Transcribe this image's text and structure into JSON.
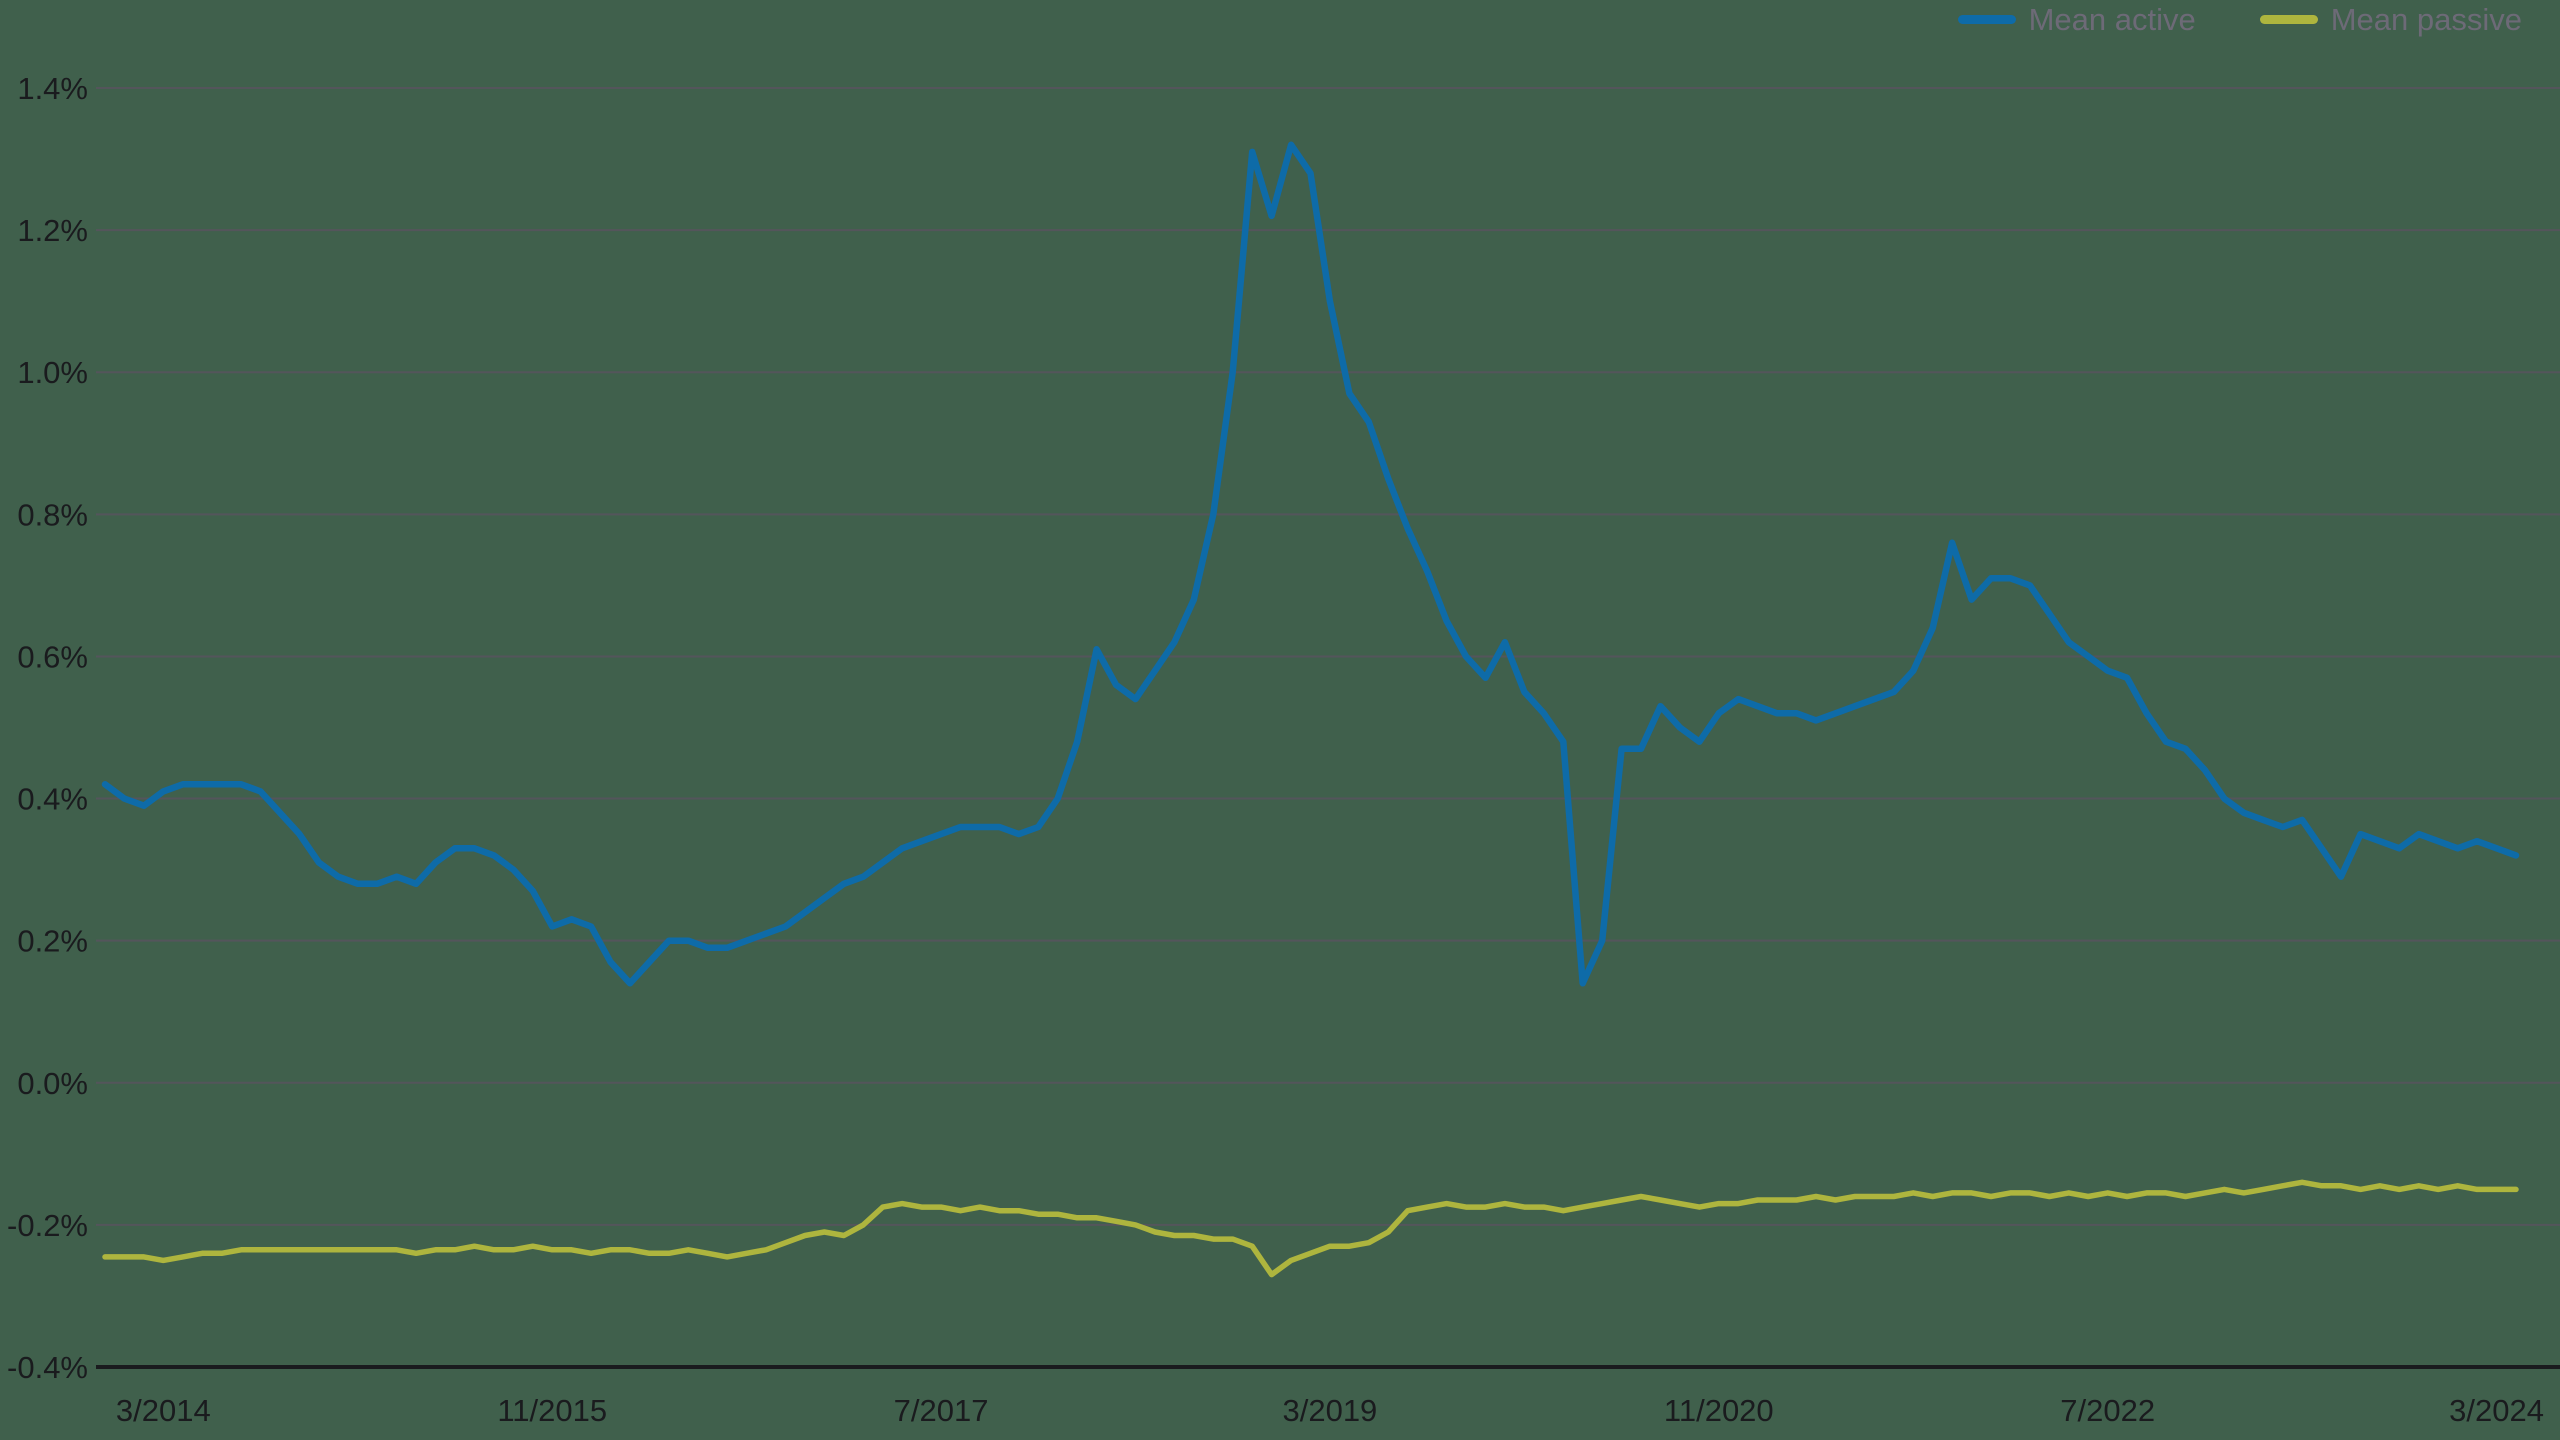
{
  "chart_data": {
    "type": "line",
    "title": "",
    "background_color": "#40604C",
    "gridline_color": "#54555B",
    "axis_line_color": "#1A1B1E",
    "tick_label_color": "#1A1B1E",
    "grid": "horizontal",
    "legend": {
      "position": "top-right",
      "text_color": "#6D6A77"
    },
    "ylim": [
      -0.4,
      1.4
    ],
    "ylabel_format": "percent",
    "y_ticks": [
      {
        "value": 1.4,
        "label": "1.4%"
      },
      {
        "value": 1.2,
        "label": "1.2%"
      },
      {
        "value": 1.0,
        "label": "1.0%"
      },
      {
        "value": 0.8,
        "label": "0.8%"
      },
      {
        "value": 0.6,
        "label": "0.6%"
      },
      {
        "value": 0.4,
        "label": "0.4%"
      },
      {
        "value": 0.2,
        "label": "0.2%"
      },
      {
        "value": 0.0,
        "label": "0.0%"
      },
      {
        "value": -0.2,
        "label": "-0.2%"
      },
      {
        "value": -0.4,
        "label": "-0.4%"
      }
    ],
    "x": {
      "unit": "month",
      "first_point": "12/2013",
      "last_point": "4/2024",
      "n_points": 125
    },
    "x_ticks": [
      {
        "label": "3/2014",
        "month_index": 3
      },
      {
        "label": "11/2015",
        "month_index": 23
      },
      {
        "label": "7/2017",
        "month_index": 43
      },
      {
        "label": "3/2019",
        "month_index": 63
      },
      {
        "label": "11/2020",
        "month_index": 83
      },
      {
        "label": "7/2022",
        "month_index": 103
      },
      {
        "label": "3/2024",
        "month_index": 123
      }
    ],
    "series": [
      {
        "name": "Mean active",
        "color": "#0E6BA8",
        "values": [
          0.42,
          0.4,
          0.39,
          0.41,
          0.42,
          0.42,
          0.42,
          0.42,
          0.41,
          0.38,
          0.35,
          0.31,
          0.29,
          0.28,
          0.28,
          0.29,
          0.28,
          0.31,
          0.33,
          0.33,
          0.32,
          0.3,
          0.27,
          0.22,
          0.23,
          0.22,
          0.17,
          0.14,
          0.17,
          0.2,
          0.2,
          0.19,
          0.19,
          0.2,
          0.21,
          0.22,
          0.24,
          0.26,
          0.28,
          0.29,
          0.31,
          0.33,
          0.34,
          0.35,
          0.36,
          0.36,
          0.36,
          0.35,
          0.36,
          0.4,
          0.48,
          0.61,
          0.56,
          0.54,
          0.58,
          0.62,
          0.68,
          0.8,
          1.0,
          1.31,
          1.22,
          1.32,
          1.28,
          1.1,
          0.97,
          0.93,
          0.85,
          0.78,
          0.72,
          0.65,
          0.6,
          0.57,
          0.62,
          0.55,
          0.52,
          0.48,
          0.14,
          0.2,
          0.47,
          0.47,
          0.53,
          0.5,
          0.48,
          0.52,
          0.54,
          0.53,
          0.52,
          0.52,
          0.51,
          0.52,
          0.53,
          0.54,
          0.55,
          0.58,
          0.64,
          0.76,
          0.68,
          0.71,
          0.71,
          0.7,
          0.66,
          0.62,
          0.6,
          0.58,
          0.57,
          0.52,
          0.48,
          0.47,
          0.44,
          0.4,
          0.38,
          0.37,
          0.36,
          0.37,
          0.33,
          0.29,
          0.35,
          0.34,
          0.33,
          0.35,
          0.34,
          0.33,
          0.34,
          0.33,
          0.32
        ]
      },
      {
        "name": "Mean passive",
        "color": "#AEB53E",
        "values": [
          -0.245,
          -0.245,
          -0.245,
          -0.25,
          -0.245,
          -0.24,
          -0.24,
          -0.235,
          -0.235,
          -0.235,
          -0.235,
          -0.235,
          -0.235,
          -0.235,
          -0.235,
          -0.235,
          -0.24,
          -0.235,
          -0.235,
          -0.23,
          -0.235,
          -0.235,
          -0.23,
          -0.235,
          -0.235,
          -0.24,
          -0.235,
          -0.235,
          -0.24,
          -0.24,
          -0.235,
          -0.24,
          -0.245,
          -0.24,
          -0.235,
          -0.225,
          -0.215,
          -0.21,
          -0.215,
          -0.2,
          -0.175,
          -0.17,
          -0.175,
          -0.175,
          -0.18,
          -0.175,
          -0.18,
          -0.18,
          -0.185,
          -0.185,
          -0.19,
          -0.19,
          -0.195,
          -0.2,
          -0.21,
          -0.215,
          -0.215,
          -0.22,
          -0.22,
          -0.23,
          -0.27,
          -0.25,
          -0.24,
          -0.23,
          -0.23,
          -0.225,
          -0.21,
          -0.18,
          -0.175,
          -0.17,
          -0.175,
          -0.175,
          -0.17,
          -0.175,
          -0.175,
          -0.18,
          -0.175,
          -0.17,
          -0.165,
          -0.16,
          -0.165,
          -0.17,
          -0.175,
          -0.17,
          -0.17,
          -0.165,
          -0.165,
          -0.165,
          -0.16,
          -0.165,
          -0.16,
          -0.16,
          -0.16,
          -0.155,
          -0.16,
          -0.155,
          -0.155,
          -0.16,
          -0.155,
          -0.155,
          -0.16,
          -0.155,
          -0.16,
          -0.155,
          -0.16,
          -0.155,
          -0.155,
          -0.16,
          -0.155,
          -0.15,
          -0.155,
          -0.15,
          -0.145,
          -0.14,
          -0.145,
          -0.145,
          -0.15,
          -0.145,
          -0.15,
          -0.145,
          -0.15,
          -0.145,
          -0.15,
          -0.15,
          -0.15
        ]
      }
    ]
  }
}
